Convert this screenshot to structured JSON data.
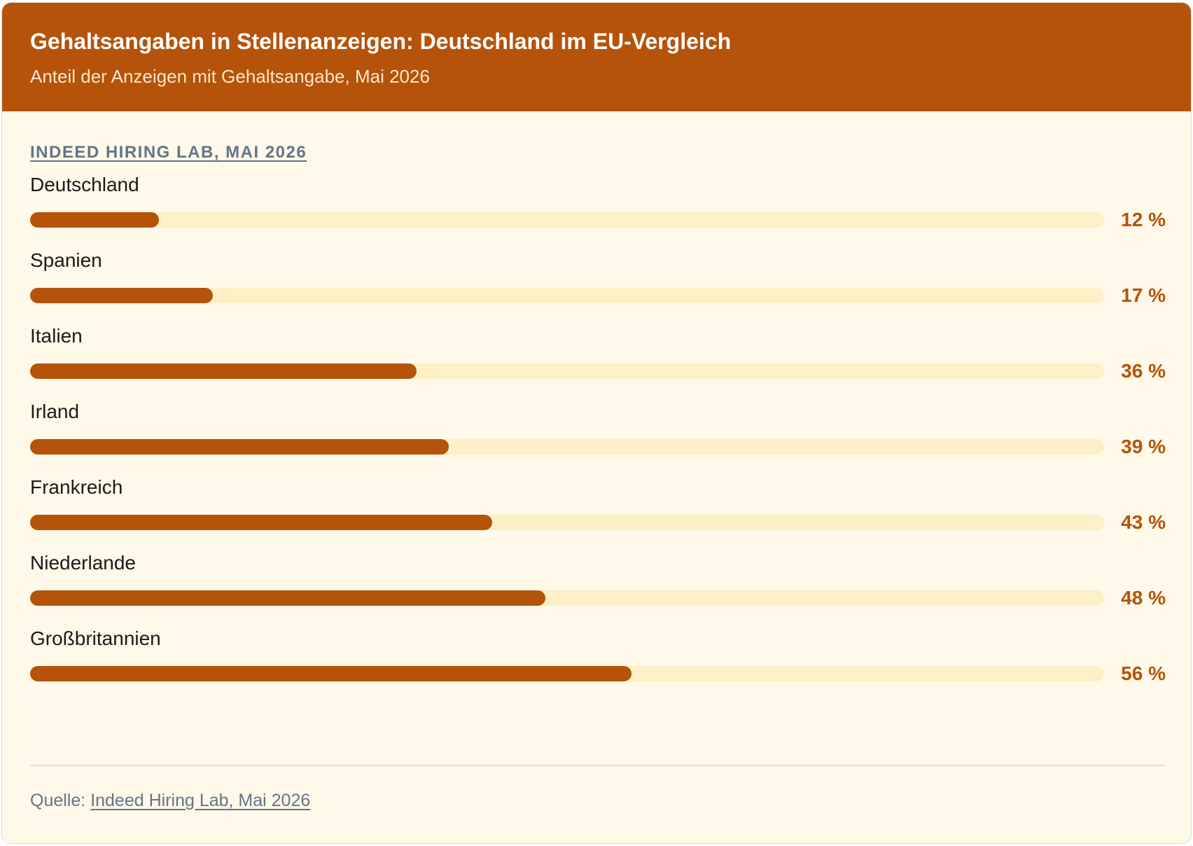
{
  "header": {
    "title": "Gehaltsangaben in Stellenanzeigen: Deutschland im EU-Vergleich",
    "subtitle": "Anteil der Anzeigen mit Gehaltsangabe, Mai 2026"
  },
  "source_heading": "INDEED HIRING LAB, MAI 2026",
  "footer": {
    "prefix": "Quelle: ",
    "link": "Indeed Hiring Lab, Mai 2026"
  },
  "colors": {
    "accent": "#b5530a",
    "track": "#fdefc6",
    "background": "#fef9e8"
  },
  "chart_data": {
    "type": "bar",
    "orientation": "horizontal",
    "categories": [
      "Deutschland",
      "Spanien",
      "Italien",
      "Irland",
      "Frankreich",
      "Niederlande",
      "Großbritannien"
    ],
    "values": [
      12,
      17,
      36,
      39,
      43,
      48,
      56
    ],
    "value_labels": [
      "12 %",
      "17 %",
      "36 %",
      "39 %",
      "43 %",
      "48 %",
      "56 %"
    ],
    "unit": "%",
    "xlim": [
      0,
      100
    ],
    "grid": false
  }
}
